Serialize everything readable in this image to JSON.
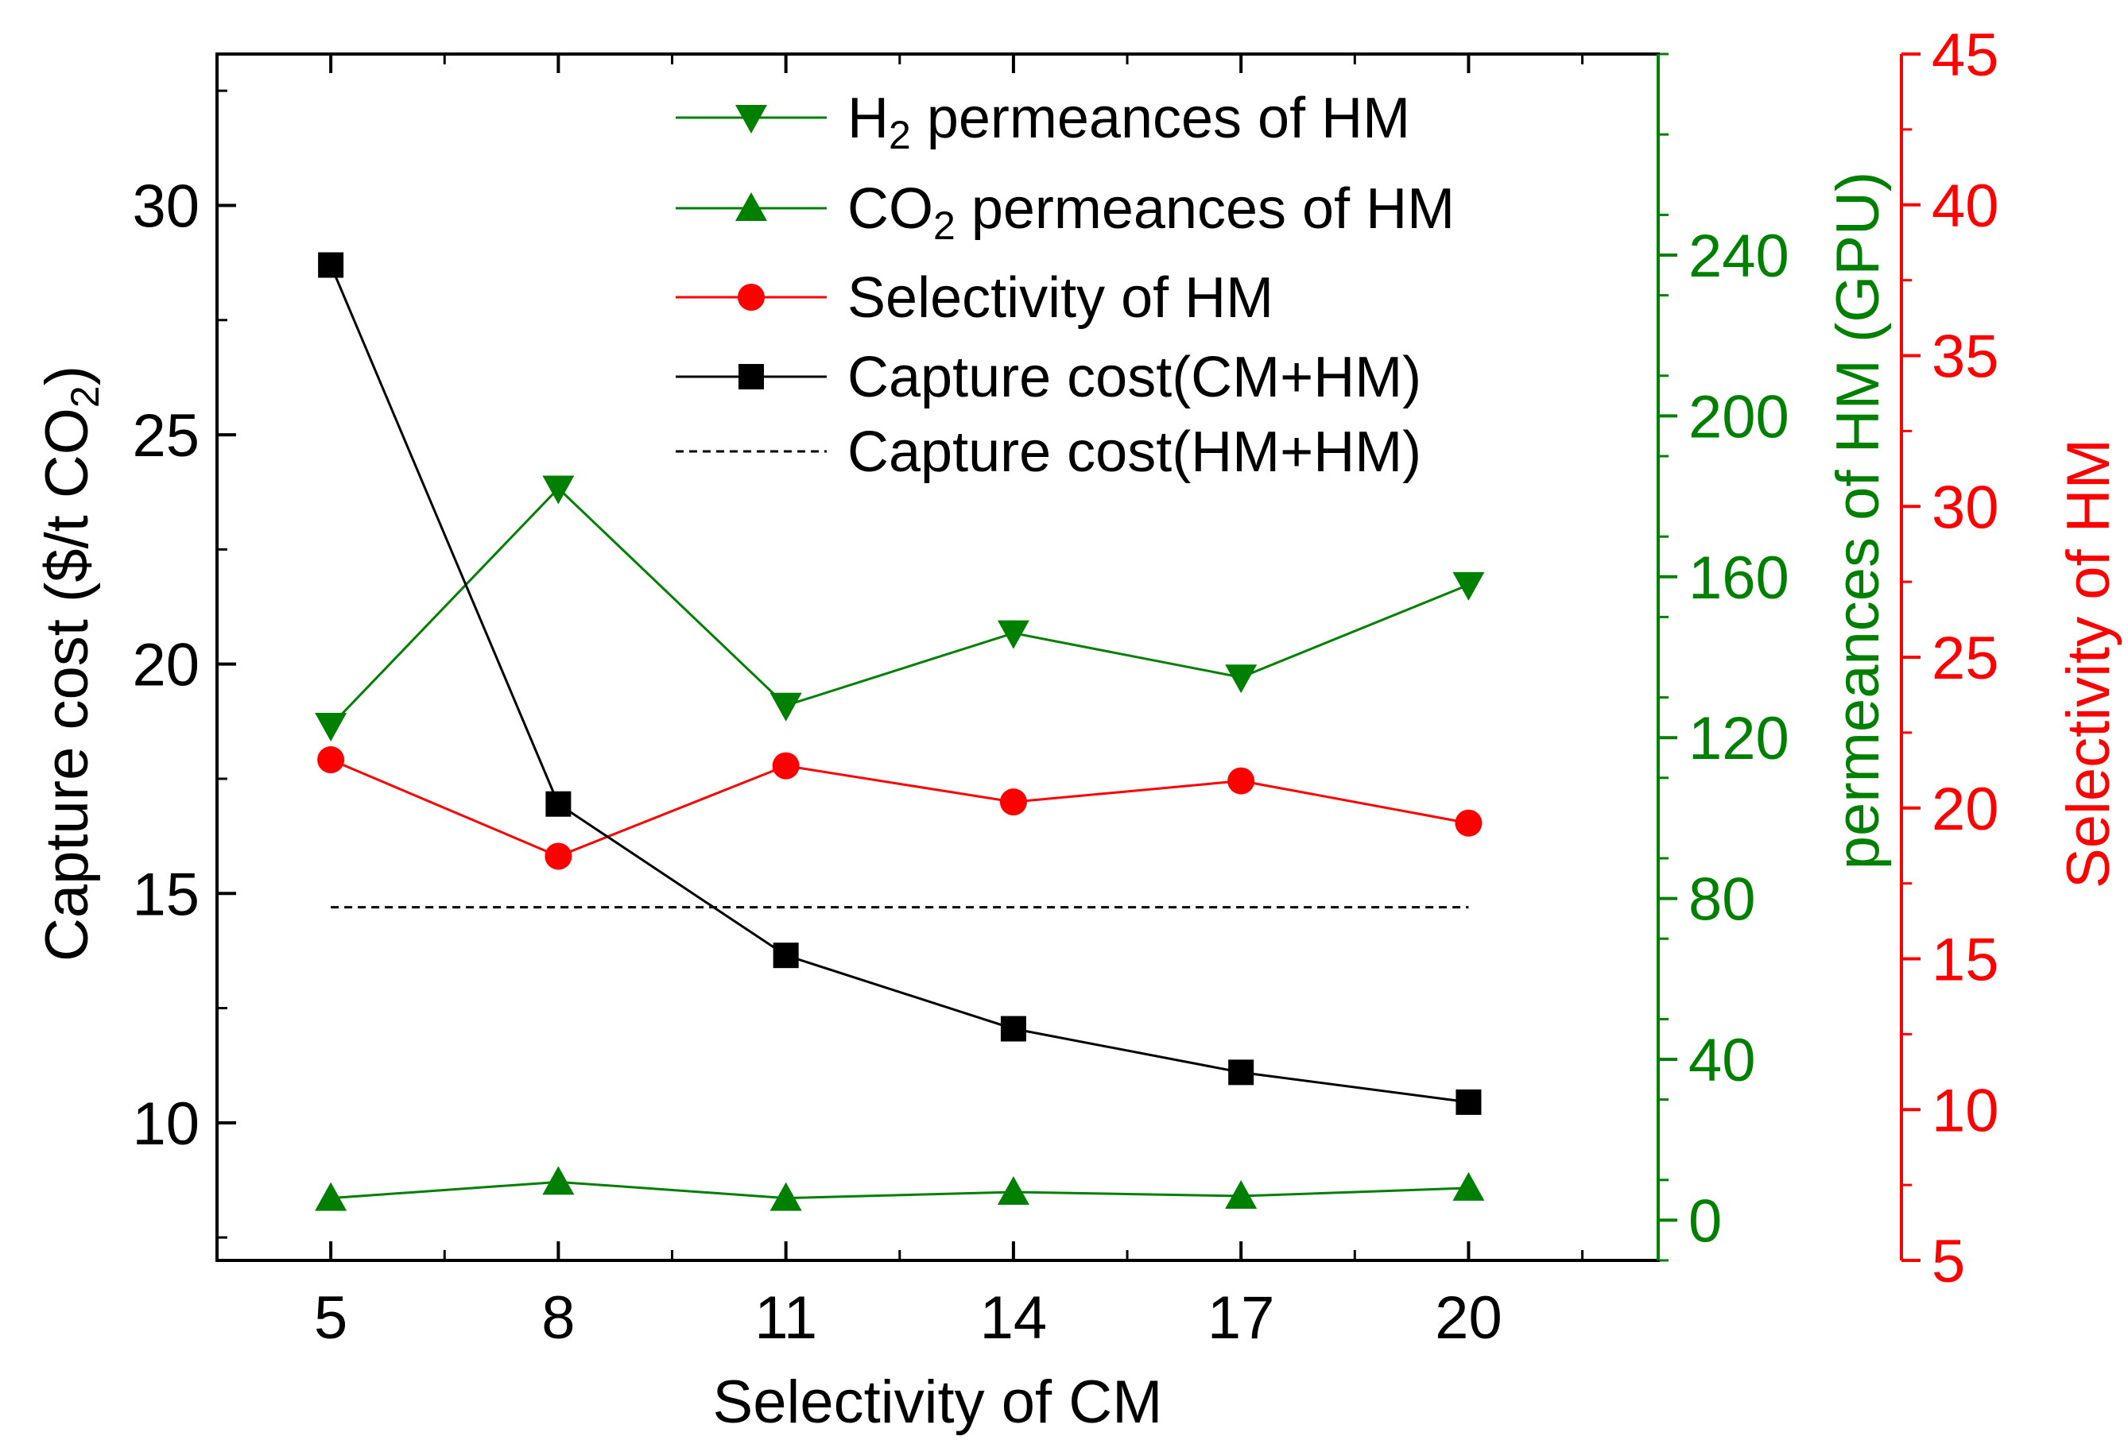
{
  "chart_data": {
    "type": "line",
    "x": [
      5,
      8,
      11,
      14,
      17,
      20
    ],
    "xlabel": "Selectivity of CM",
    "x_ticks": [
      5,
      8,
      11,
      14,
      17,
      20
    ],
    "xlim": [
      3.5,
      22.5
    ],
    "axes": {
      "left": {
        "label": "Capture cost ($/t CO2)",
        "label_text": "Capture cost ($/t CO",
        "label_sub": "2",
        "label_close": ")",
        "ylim": [
          7.0,
          33.3
        ],
        "ticks": [
          10,
          15,
          20,
          25,
          30
        ],
        "color": "#000000"
      },
      "right1": {
        "label": "permeances of HM (GPU)",
        "ylim": [
          -10,
          290
        ],
        "ticks": [
          0,
          40,
          80,
          120,
          160,
          200,
          240
        ],
        "color": "#008000"
      },
      "right2": {
        "label": "Selectivity of HM",
        "ylim": [
          5,
          45
        ],
        "ticks": [
          5,
          10,
          15,
          20,
          25,
          30,
          35,
          40,
          45
        ],
        "color": "#ff0000"
      }
    },
    "series": [
      {
        "name": "H2 permeances of HM",
        "legend_main": "H",
        "legend_sub": "2",
        "legend_rest": " permeances of HM",
        "axis": "right1",
        "marker": "triangle-down",
        "color": "#008000",
        "values": [
          123,
          182,
          128,
          146,
          135,
          158
        ]
      },
      {
        "name": "CO2 permeances of HM",
        "legend_main": "CO",
        "legend_sub": "2",
        "legend_rest": " permeances of HM",
        "axis": "right1",
        "marker": "triangle-up",
        "color": "#008000",
        "values": [
          5.5,
          9.5,
          5.5,
          7.0,
          6.0,
          8.0
        ]
      },
      {
        "name": "Selectivity of HM",
        "legend_main": "Selectivity of HM",
        "axis": "right2",
        "marker": "circle",
        "color": "#ff0000",
        "values": [
          21.6,
          18.4,
          21.4,
          20.2,
          20.9,
          19.5
        ]
      },
      {
        "name": "Capture cost(CM+HM)",
        "legend_main": "Capture cost(CM+HM)",
        "axis": "left",
        "marker": "square",
        "color": "#000000",
        "values": [
          28.7,
          16.95,
          13.65,
          12.05,
          11.1,
          10.45
        ]
      },
      {
        "name": "Capture cost(HM+HM)",
        "legend_main": "Capture cost(HM+HM)",
        "axis": "left",
        "marker": "none",
        "style": "dashed",
        "color": "#000000",
        "values": [
          14.7,
          14.7,
          14.7,
          14.7,
          14.7,
          14.7
        ]
      }
    ]
  }
}
